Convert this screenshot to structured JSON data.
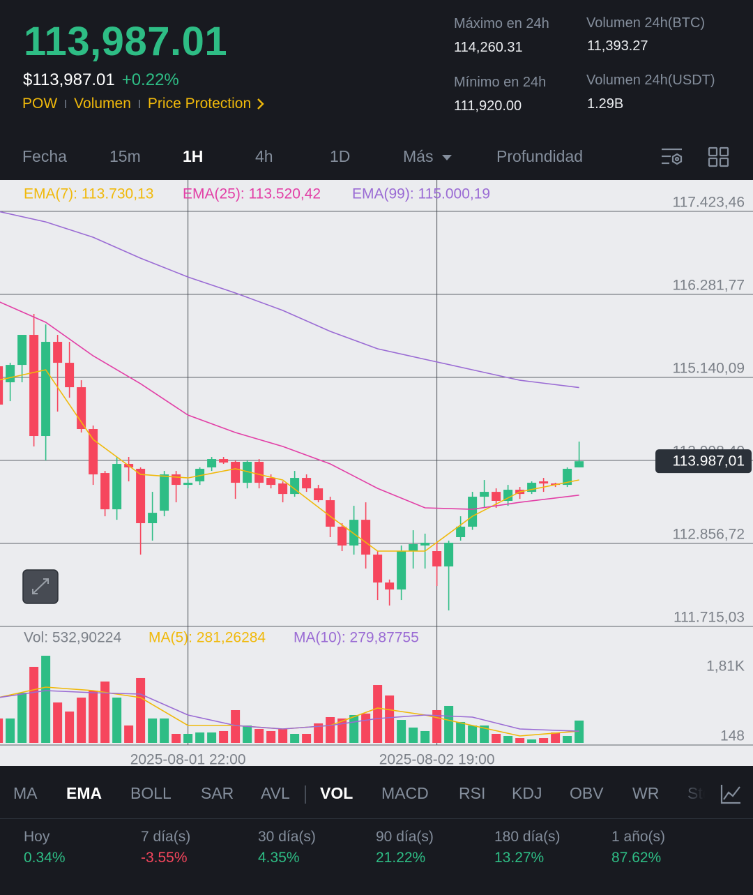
{
  "header": {
    "last_price": "113,987.01",
    "fiat_price": "$113,987.01",
    "change": "+0.22%",
    "tags": [
      "POW",
      "Volumen",
      "Price Protection"
    ],
    "stats": [
      {
        "label": "Máximo en 24h",
        "value": "114,260.31"
      },
      {
        "label": "Mínimo en 24h",
        "value": "111,920.00"
      },
      {
        "label": "Volumen 24h(BTC)",
        "value": "11,393.27"
      },
      {
        "label": "Volumen 24h(USDT)",
        "value": "1.29B"
      }
    ]
  },
  "timeframes": [
    "Fecha",
    "15m",
    "1H",
    "4h",
    "1D",
    "Más",
    "Profundidad"
  ],
  "chart_data": {
    "type": "candlestick",
    "up_color": "#2ebd85",
    "down_color": "#f6465d",
    "xlim": [
      0.14,
      63.67
    ],
    "xticks": [
      {
        "value": 16,
        "label": "2025-08-01 22:00"
      },
      {
        "value": 37,
        "label": "2025-08-02 19:00"
      }
    ],
    "ylim": [
      111715.03,
      117836
    ],
    "yticks": [
      {
        "value": 117423.46,
        "label": "117.423,46"
      },
      {
        "value": 116281.77,
        "label": "116.281,77"
      },
      {
        "value": 115140.09,
        "label": "115.140,09"
      },
      {
        "value": 113998.4,
        "label": "113.998,40"
      },
      {
        "value": 112856.72,
        "label": "112.856,72"
      },
      {
        "value": 111715.03,
        "label": "111.715,03"
      }
    ],
    "open": [
      115293,
      115073,
      115312,
      115725,
      114334,
      115629,
      115341,
      115005,
      114430,
      113825,
      113326,
      113950,
      113883,
      113135,
      113307,
      113806,
      113662,
      113710,
      113902,
      114017,
      113979,
      113691,
      113979,
      113758,
      113681,
      113537,
      113758,
      113614,
      113451,
      113087,
      112828,
      113182,
      112703,
      112319,
      112223,
      112751,
      112828,
      112751,
      112540,
      112943,
      113087,
      113499,
      113566,
      113442,
      113595,
      113566,
      113710,
      113681,
      113662,
      113902
    ],
    "high": [
      115389,
      115341,
      115725,
      116013,
      115868,
      115725,
      115629,
      115101,
      114478,
      113854,
      114046,
      114046,
      113902,
      113566,
      113854,
      113854,
      113729,
      113902,
      114046,
      114046,
      113998,
      113998,
      114017,
      113806,
      113710,
      113854,
      113806,
      113662,
      113499,
      113135,
      113374,
      113422,
      112751,
      112360,
      112828,
      113038,
      112991,
      112866,
      112895,
      113230,
      113566,
      113729,
      113614,
      113662,
      113633,
      113710,
      113758,
      113691,
      113902,
      114257
    ],
    "low": [
      114622,
      114813,
      115073,
      114190,
      113998,
      114670,
      114861,
      114382,
      113662,
      113230,
      113182,
      113710,
      112703,
      112895,
      113230,
      113422,
      113614,
      113662,
      113854,
      113950,
      113470,
      113614,
      113614,
      113614,
      113422,
      113499,
      113566,
      113422,
      112943,
      112751,
      112703,
      112511,
      112079,
      112002,
      112079,
      112511,
      112511,
      112271,
      111935,
      112895,
      113043,
      113346,
      113346,
      113374,
      113470,
      113537,
      113566,
      113633,
      113633,
      113902
    ],
    "close": [
      114766,
      115312,
      115725,
      114334,
      115629,
      115341,
      115005,
      114430,
      113806,
      113326,
      113950,
      113902,
      113135,
      113278,
      113806,
      113662,
      113691,
      113883,
      114017,
      113969,
      113691,
      113979,
      113691,
      113662,
      113537,
      113758,
      113614,
      113451,
      113087,
      112828,
      113182,
      112703,
      112319,
      112223,
      112751,
      112847,
      112866,
      112540,
      112866,
      113087,
      113499,
      113566,
      113442,
      113595,
      113537,
      113691,
      113681,
      113662,
      113883,
      113987.01
    ],
    "lines": [
      {
        "name": "EMA(7): 113.730,13",
        "color": "#f0b90b",
        "x": [
          0,
          4,
          8,
          12,
          16,
          20,
          24,
          28,
          32,
          36,
          40,
          44,
          49
        ],
        "values": [
          115101,
          115245,
          114286,
          113806,
          113758,
          113883,
          113729,
          113230,
          112751,
          112751,
          113230,
          113566,
          113730.13
        ]
      },
      {
        "name": "EMA(25): 113.520,42",
        "color": "#e23fa6",
        "x": [
          0,
          4,
          8,
          12,
          16,
          20,
          24,
          28,
          32,
          36,
          40,
          44,
          49
        ],
        "values": [
          116185,
          115898,
          115437,
          115053,
          114622,
          114382,
          114190,
          113950,
          113614,
          113346,
          113326,
          113422,
          113520.42
        ]
      },
      {
        "name": "EMA(99): 115.000,19",
        "color": "#9a6bd4",
        "x": [
          0,
          4,
          8,
          12,
          16,
          20,
          24,
          28,
          32,
          36,
          40,
          44,
          49
        ],
        "values": [
          117423,
          117279,
          117068,
          116780,
          116521,
          116301,
          116061,
          115773,
          115533,
          115389,
          115245,
          115101,
          115000.19
        ]
      }
    ],
    "last_price": 113987.01,
    "last_price_label": "113.987,01",
    "volume": {
      "legend": "Vol: 532,90224",
      "ylim": [
        0,
        2742
      ],
      "yticks": [
        {
          "value": 1810,
          "label": "1,81K"
        },
        148
      ],
      "values": [
        582,
        582,
        1197,
        1812,
        2077,
        964,
        748,
        1080,
        1247,
        1463,
        1080,
        415,
        1546,
        582,
        582,
        216,
        216,
        249,
        249,
        283,
        781,
        415,
        332,
        283,
        332,
        216,
        216,
        465,
        615,
        582,
        665,
        700,
        1379,
        1130,
        548,
        366,
        283,
        781,
        881,
        499,
        415,
        415,
        216,
        166,
        116,
        83,
        116,
        249,
        166,
        532.90224
      ],
      "lines": [
        {
          "name": "MA(5): 281,26284",
          "color": "#f0b90b",
          "x": [
            0,
            4,
            8,
            12,
            16,
            20,
            24,
            28,
            32,
            36,
            40,
            44,
            49
          ],
          "values": [
            1080,
            1330,
            1246,
            1080,
            415,
            415,
            332,
            415,
            831,
            665,
            415,
            166,
            281.26284
          ]
        },
        {
          "name": "MA(10): 279,87755",
          "color": "#9a6bd4",
          "x": [
            0,
            4,
            8,
            12,
            16,
            20,
            24,
            28,
            32,
            36,
            40,
            44,
            49
          ],
          "values": [
            1080,
            1246,
            1197,
            1163,
            665,
            415,
            332,
            415,
            582,
            665,
            615,
            332,
            279.87755
          ]
        }
      ]
    }
  },
  "indicators": [
    "MA",
    "EMA",
    "BOLL",
    "SAR",
    "AVL",
    "VOL",
    "MACD",
    "RSI",
    "KDJ",
    "OBV",
    "WR",
    "Sto"
  ],
  "performance": [
    {
      "label": "Hoy",
      "value": "0.34%"
    },
    {
      "label": "7 día(s)",
      "value": "-3.55%"
    },
    {
      "label": "30 día(s)",
      "value": "4.35%"
    },
    {
      "label": "90 día(s)",
      "value": "21.22%"
    },
    {
      "label": "180 día(s)",
      "value": "13.27%"
    },
    {
      "label": "1 año(s)",
      "value": "87.62%"
    }
  ]
}
